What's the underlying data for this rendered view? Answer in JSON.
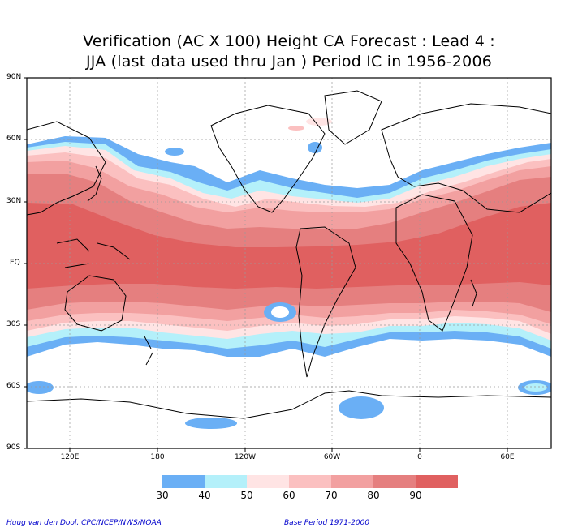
{
  "title": {
    "line1": "Verification (AC X 100) Height CA Forecast : Lead 4 :",
    "line2": "JJA (last data used thru Jan ) Period IC in 1956-2006"
  },
  "axes": {
    "lat_labels": [
      "90N",
      "60N",
      "30N",
      "EQ",
      "30S",
      "60S",
      "90S"
    ],
    "lon_labels": [
      "120E",
      "180",
      "120W",
      "60W",
      "0",
      "60E"
    ]
  },
  "colorbar": {
    "ticks": [
      "30",
      "40",
      "50",
      "60",
      "70",
      "80",
      "90"
    ],
    "colors": [
      "#6aaff5",
      "#b4f0fa",
      "#ffe4e4",
      "#fbc0c0",
      "#f2a0a0",
      "#e57f7f",
      "#e06060"
    ]
  },
  "footer": {
    "credit": "Huug van den Dool, CPC/NCEP/NWS/NOAA",
    "base_period": "Base Period 1971-2000"
  }
}
